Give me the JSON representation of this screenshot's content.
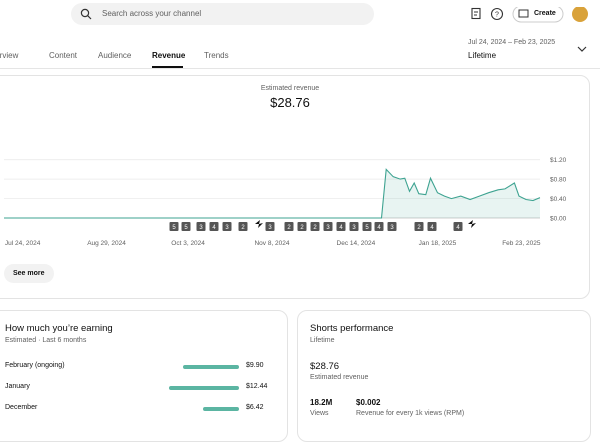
{
  "header": {
    "search_placeholder": "Search across your channel",
    "create": "Create"
  },
  "tabs": [
    "Overview",
    "Content",
    "Audience",
    "Revenue",
    "Trends"
  ],
  "date_range": {
    "range": "Jul 24, 2024 – Feb 23, 2025",
    "period": "Lifetime"
  },
  "revenue_card": {
    "label": "Estimated revenue",
    "total": "$28.76",
    "see_more": "See more",
    "upload_markers": [
      "5",
      "5",
      "3",
      "4",
      "3",
      "2",
      "3",
      "2",
      "2",
      "2",
      "3",
      "4",
      "3",
      "5",
      "4",
      "3",
      "2",
      "4",
      "4"
    ]
  },
  "chart_data": {
    "type": "line",
    "color": "#3ea391",
    "grid": true,
    "x": [
      "2024-07-16",
      "2024-12-25",
      "2024-12-27",
      "2024-12-30",
      "2025-01-02",
      "2025-01-04",
      "2025-01-06",
      "2025-01-08",
      "2025-01-10",
      "2025-01-13",
      "2025-01-15",
      "2025-01-18",
      "2025-01-21",
      "2025-01-24",
      "2025-01-28",
      "2025-02-01",
      "2025-02-05",
      "2025-02-09",
      "2025-02-13",
      "2025-02-16",
      "2025-02-20",
      "2025-02-22",
      "2025-02-25",
      "2025-02-28",
      "2025-03-03"
    ],
    "values": [
      0,
      0,
      1.0,
      0.85,
      0.8,
      0.82,
      0.55,
      0.72,
      0.5,
      0.48,
      0.82,
      0.52,
      0.45,
      0.4,
      0.45,
      0.38,
      0.45,
      0.52,
      0.58,
      0.6,
      0.72,
      0.45,
      0.38,
      0.36,
      0.42
    ],
    "xlim": [
      "2024-07-16",
      "2025-03-03"
    ],
    "xticks": [
      {
        "value": "2024-07-24",
        "label": "Jul 24, 2024"
      },
      {
        "value": "2024-08-29",
        "label": "Aug 29, 2024"
      },
      {
        "value": "2024-10-03",
        "label": "Oct 3, 2024"
      },
      {
        "value": "2024-11-08",
        "label": "Nov 8, 2024"
      },
      {
        "value": "2024-12-14",
        "label": "Dec 14, 2024"
      },
      {
        "value": "2025-01-18",
        "label": "Jan 18, 2025"
      },
      {
        "value": "2025-02-23",
        "label": "Feb 23, 2025"
      }
    ],
    "ylim": [
      0,
      1.4
    ],
    "yticks": [
      {
        "value": 0,
        "label": "$0.00"
      },
      {
        "value": 0.4,
        "label": "$0.40"
      },
      {
        "value": 0.8,
        "label": "$0.80"
      },
      {
        "value": 1.2,
        "label": "$1.20"
      }
    ]
  },
  "earnings": {
    "title": "How much you’re earning",
    "subtitle": "Estimated · Last 6 months",
    "color": "#5bb5a2",
    "categories": [
      "February (ongoing)",
      "January",
      "December"
    ],
    "values": [
      9.9,
      12.44,
      6.42
    ],
    "value_labels": [
      "$9.90",
      "$12.44",
      "$6.42"
    ]
  },
  "shorts": {
    "title": "Shorts performance",
    "subtitle": "Lifetime",
    "revenue": "$28.76",
    "revenue_label": "Estimated revenue",
    "views": "18.2M",
    "views_label": "Views",
    "rpm": "$0.002",
    "rpm_label": "Revenue for every 1k views (RPM)"
  }
}
